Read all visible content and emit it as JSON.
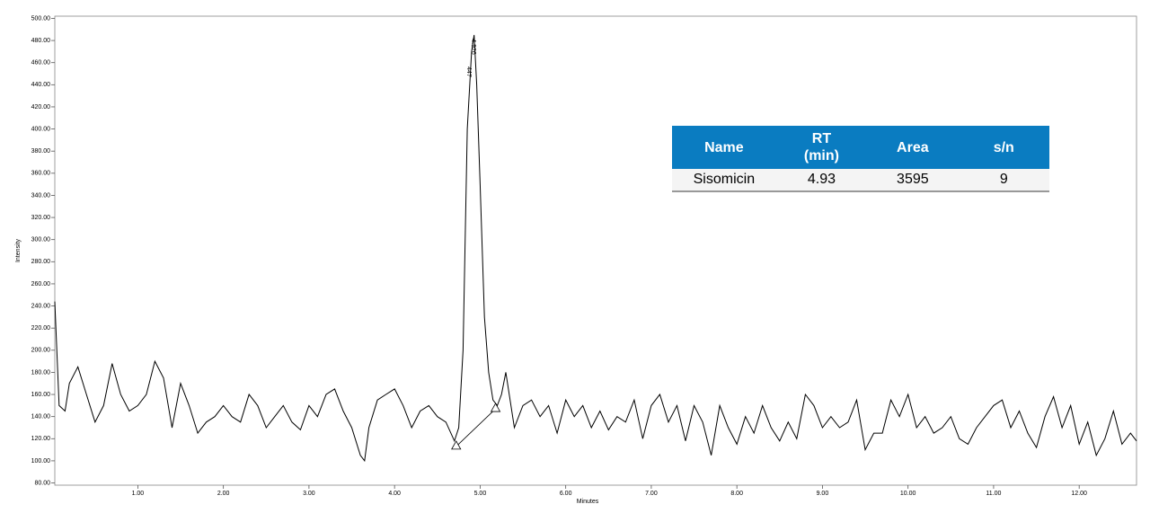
{
  "chart_data": {
    "type": "line",
    "x_label": "Minutes",
    "y_label": "Intensity",
    "xlim": [
      0.03,
      12.67
    ],
    "ylim": [
      78,
      502
    ],
    "xticks": [
      {
        "value": 1,
        "label": "1.00"
      },
      {
        "value": 2,
        "label": "2.00"
      },
      {
        "value": 3,
        "label": "3.00"
      },
      {
        "value": 4,
        "label": "4.00"
      },
      {
        "value": 5,
        "label": "5.00"
      },
      {
        "value": 6,
        "label": "6.00"
      },
      {
        "value": 7,
        "label": "7.00"
      },
      {
        "value": 8,
        "label": "8.00"
      },
      {
        "value": 9,
        "label": "9.00"
      },
      {
        "value": 10,
        "label": "10.00"
      },
      {
        "value": 11,
        "label": "11.00"
      },
      {
        "value": 12,
        "label": "12.00"
      }
    ],
    "yticks": [
      {
        "value": 80,
        "label": "80.00"
      },
      {
        "value": 100,
        "label": "100.00"
      },
      {
        "value": 120,
        "label": "120.00"
      },
      {
        "value": 140,
        "label": "140.00"
      },
      {
        "value": 160,
        "label": "160.00"
      },
      {
        "value": 180,
        "label": "180.00"
      },
      {
        "value": 200,
        "label": "200.00"
      },
      {
        "value": 220,
        "label": "220.00"
      },
      {
        "value": 240,
        "label": "240.00"
      },
      {
        "value": 260,
        "label": "260.00"
      },
      {
        "value": 280,
        "label": "280.00"
      },
      {
        "value": 300,
        "label": "300.00"
      },
      {
        "value": 320,
        "label": "320.00"
      },
      {
        "value": 340,
        "label": "340.00"
      },
      {
        "value": 360,
        "label": "360.00"
      },
      {
        "value": 380,
        "label": "380.00"
      },
      {
        "value": 400,
        "label": "400.00"
      },
      {
        "value": 420,
        "label": "420.00"
      },
      {
        "value": 440,
        "label": "440.00"
      },
      {
        "value": 460,
        "label": "460.00"
      },
      {
        "value": 480,
        "label": "480.00"
      },
      {
        "value": 500,
        "label": "500.00"
      }
    ],
    "grid": false,
    "series": [
      {
        "color": "#000000",
        "x": [
          0.03,
          0.08,
          0.15,
          0.2,
          0.3,
          0.4,
          0.5,
          0.6,
          0.7,
          0.8,
          0.9,
          1.0,
          1.1,
          1.2,
          1.3,
          1.4,
          1.5,
          1.6,
          1.7,
          1.8,
          1.9,
          2.0,
          2.1,
          2.2,
          2.3,
          2.4,
          2.5,
          2.6,
          2.7,
          2.8,
          2.9,
          3.0,
          3.1,
          3.2,
          3.3,
          3.4,
          3.5,
          3.6,
          3.65,
          3.7,
          3.8,
          3.9,
          4.0,
          4.1,
          4.2,
          4.3,
          4.4,
          4.5,
          4.6,
          4.7,
          4.75,
          4.8,
          4.85,
          4.9,
          4.93,
          4.96,
          5.0,
          5.05,
          5.1,
          5.15,
          5.2,
          5.25,
          5.3,
          5.4,
          5.5,
          5.6,
          5.7,
          5.8,
          5.9,
          6.0,
          6.1,
          6.2,
          6.3,
          6.4,
          6.5,
          6.6,
          6.7,
          6.8,
          6.9,
          7.0,
          7.1,
          7.2,
          7.3,
          7.4,
          7.5,
          7.6,
          7.7,
          7.8,
          7.9,
          8.0,
          8.1,
          8.2,
          8.3,
          8.4,
          8.5,
          8.6,
          8.7,
          8.8,
          8.9,
          9.0,
          9.1,
          9.2,
          9.3,
          9.4,
          9.5,
          9.6,
          9.7,
          9.8,
          9.9,
          10.0,
          10.1,
          10.2,
          10.3,
          10.4,
          10.5,
          10.6,
          10.7,
          10.8,
          10.9,
          11.0,
          11.1,
          11.2,
          11.3,
          11.4,
          11.5,
          11.6,
          11.7,
          11.8,
          11.9,
          12.0,
          12.1,
          12.2,
          12.3,
          12.4,
          12.5,
          12.6,
          12.67
        ],
        "values": [
          244,
          150,
          145,
          170,
          185,
          160,
          135,
          150,
          188,
          160,
          145,
          150,
          160,
          190,
          175,
          130,
          170,
          150,
          125,
          135,
          140,
          150,
          140,
          135,
          160,
          150,
          130,
          140,
          150,
          135,
          128,
          150,
          140,
          160,
          165,
          145,
          130,
          105,
          100,
          130,
          155,
          160,
          165,
          150,
          130,
          145,
          150,
          140,
          135,
          118,
          130,
          200,
          400,
          470,
          485,
          440,
          350,
          230,
          180,
          155,
          150,
          160,
          180,
          130,
          150,
          155,
          140,
          150,
          125,
          155,
          140,
          150,
          130,
          145,
          128,
          140,
          135,
          155,
          120,
          150,
          160,
          135,
          150,
          118,
          150,
          135,
          105,
          150,
          130,
          115,
          140,
          125,
          150,
          130,
          118,
          135,
          120,
          160,
          150,
          130,
          140,
          130,
          135,
          155,
          110,
          125,
          125,
          155,
          140,
          160,
          130,
          140,
          125,
          130,
          140,
          120,
          115,
          130,
          140,
          150,
          155,
          130,
          145,
          125,
          112,
          140,
          158,
          130,
          150,
          115,
          135,
          105,
          120,
          145,
          115,
          125,
          118
        ]
      }
    ],
    "baseline": {
      "x": [
        4.72,
        5.18
      ],
      "y": [
        113,
        147
      ]
    },
    "annotations": [
      "4.926",
      "447"
    ],
    "table": {
      "header": [
        "Name",
        "RT (min)",
        "Area",
        "s/n"
      ],
      "rows": [
        [
          "Sisomicin",
          4.93,
          3595,
          9
        ]
      ]
    }
  }
}
